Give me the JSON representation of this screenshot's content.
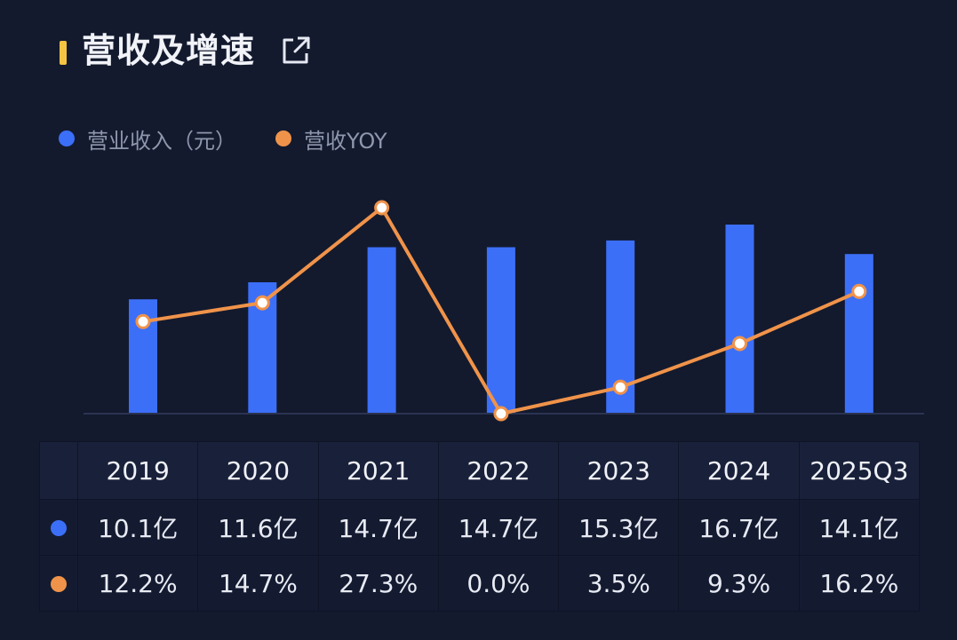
{
  "header": {
    "title": "营收及增速",
    "accent_color": "#f5c442",
    "icon": "external-link-icon"
  },
  "colors": {
    "bar": "#3c6ff7",
    "line": "#f0934a",
    "point_fill": "#ffffff"
  },
  "legend": [
    {
      "label": "营业收入（元）",
      "color": "#3c6ff7"
    },
    {
      "label": "营收YOY",
      "color": "#f0934a"
    }
  ],
  "chart_data": {
    "type": "bar",
    "categories": [
      "2019",
      "2020",
      "2021",
      "2022",
      "2023",
      "2024",
      "2025Q3"
    ],
    "series": [
      {
        "name": "营业收入（元）",
        "type": "bar",
        "values": [
          10.1,
          11.6,
          14.7,
          14.7,
          15.3,
          16.7,
          14.1
        ],
        "unit": "亿"
      },
      {
        "name": "营收YOY",
        "type": "line",
        "values": [
          12.2,
          14.7,
          27.3,
          0.0,
          3.5,
          9.3,
          16.2
        ],
        "unit": "%"
      }
    ],
    "bar_ylim": [
      0,
      16.7
    ],
    "line_ylim": [
      0,
      27.3
    ],
    "legend_position": "top-left",
    "grid": false
  },
  "table": {
    "headers": [
      "2019",
      "2020",
      "2021",
      "2022",
      "2023",
      "2024",
      "2025Q3"
    ],
    "rows": [
      {
        "color": "#3c6ff7",
        "cells": [
          "10.1亿",
          "11.6亿",
          "14.7亿",
          "14.7亿",
          "15.3亿",
          "16.7亿",
          "14.1亿"
        ]
      },
      {
        "color": "#f0934a",
        "cells": [
          "12.2%",
          "14.7%",
          "27.3%",
          "0.0%",
          "3.5%",
          "9.3%",
          "16.2%"
        ]
      }
    ]
  }
}
